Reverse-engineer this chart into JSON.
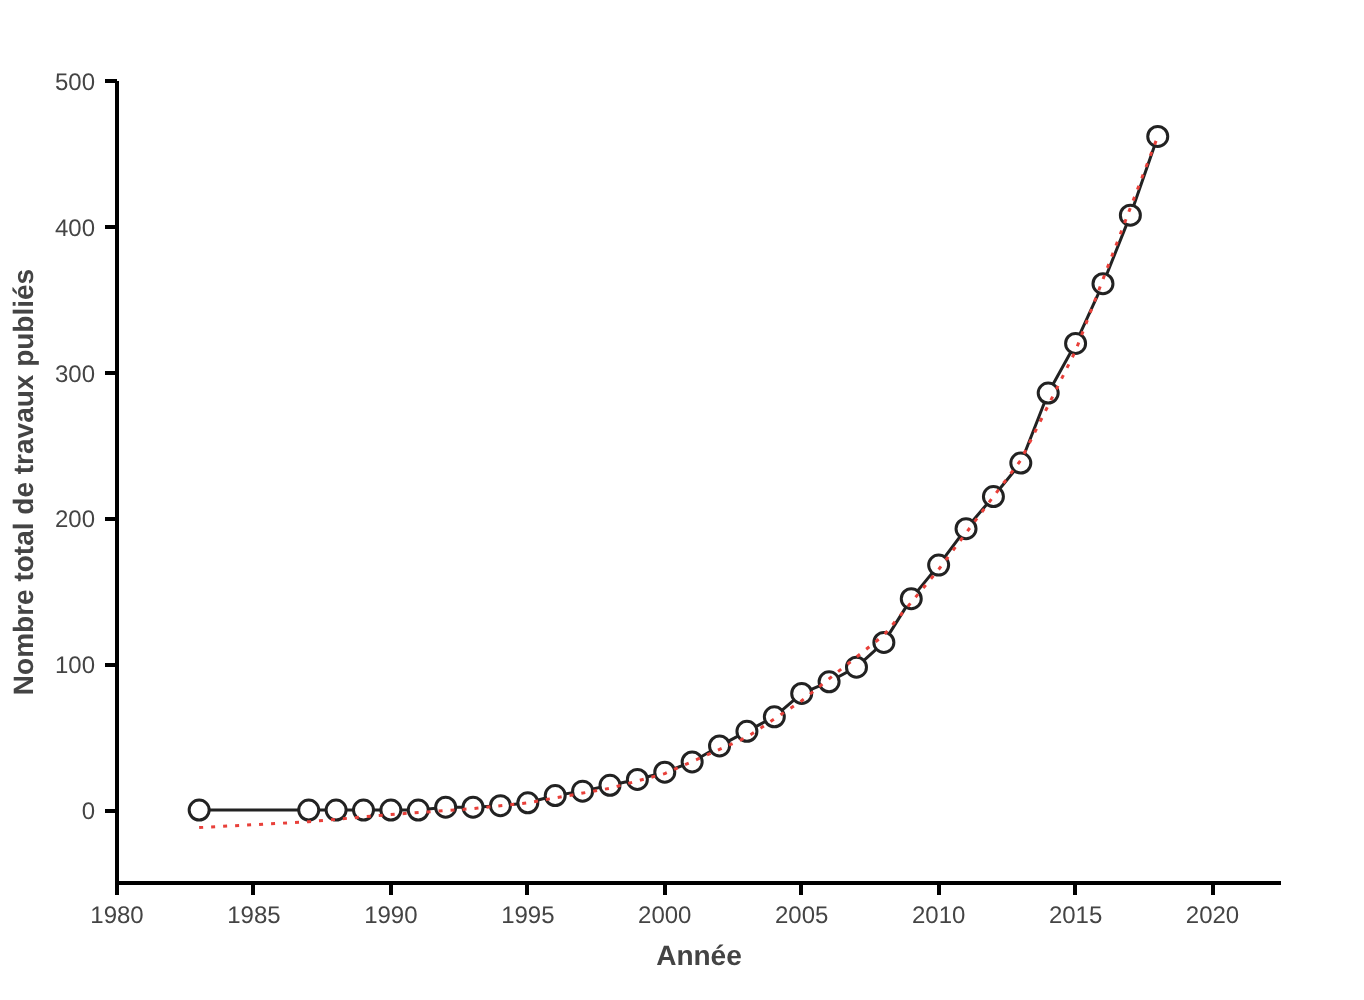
{
  "chart_data": {
    "type": "line",
    "xlabel": "Année",
    "ylabel": "Nombre total de travaux publiés",
    "xlim": [
      1980,
      2022.5
    ],
    "ylim": [
      -50,
      500
    ],
    "xticks": [
      1980,
      1985,
      1990,
      1995,
      2000,
      2005,
      2010,
      2015,
      2020
    ],
    "yticks": [
      0,
      100,
      200,
      300,
      400,
      500
    ],
    "grid": false,
    "series": [
      {
        "color": "#222222",
        "marker": "circle",
        "line_style": "solid",
        "x": [
          1983,
          1987,
          1988,
          1989,
          1990,
          1991,
          1992,
          1993,
          1994,
          1995,
          1996,
          1997,
          1998,
          1999,
          2000,
          2001,
          2002,
          2003,
          2004,
          2005,
          2006,
          2007,
          2008,
          2009,
          2010,
          2011,
          2012,
          2013,
          2014,
          2015,
          2016,
          2017,
          2018
        ],
        "values": [
          0,
          0,
          0,
          0,
          0,
          0,
          2,
          2,
          3,
          5,
          10,
          13,
          17,
          21,
          26,
          33,
          44,
          54,
          64,
          80,
          88,
          98,
          115,
          145,
          168,
          193,
          215,
          238,
          286,
          320,
          361,
          408,
          462
        ]
      },
      {
        "color": "#e8403a",
        "marker": "none",
        "line_style": "dotted",
        "x": [
          1983,
          1987,
          1990,
          1993,
          1995,
          1998,
          2000,
          2003,
          2005,
          2008,
          2010,
          2013,
          2015,
          2018
        ],
        "values": [
          -12,
          -8,
          -3,
          1,
          5,
          15,
          25,
          50,
          75,
          120,
          165,
          240,
          315,
          462
        ]
      }
    ]
  }
}
